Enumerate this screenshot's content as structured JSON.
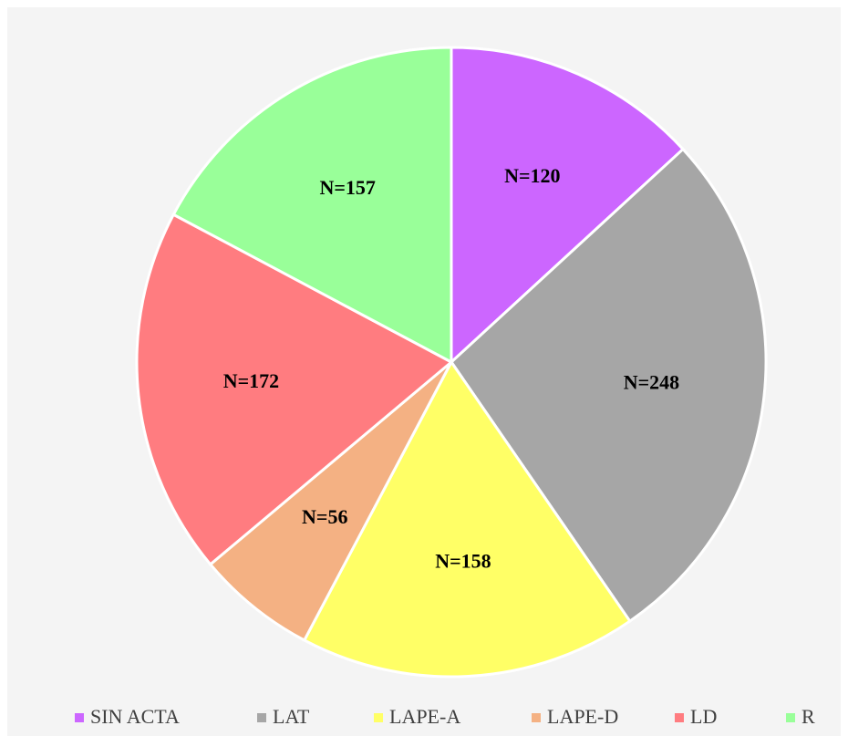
{
  "chart_data": {
    "type": "pie",
    "categories": [
      "SIN ACTA",
      "LAT",
      "LAPE-A",
      "LAPE-D",
      "LD",
      "R"
    ],
    "values": [
      120,
      248,
      158,
      56,
      172,
      157
    ],
    "value_labels": [
      "N=120",
      "N=248",
      "N=158",
      "N=56",
      "N=172",
      "N=157"
    ],
    "colors": [
      "#cc66ff",
      "#a6a6a6",
      "#ffff66",
      "#f4b183",
      "#ff7c80",
      "#99ff99"
    ],
    "legend": "bottom"
  }
}
